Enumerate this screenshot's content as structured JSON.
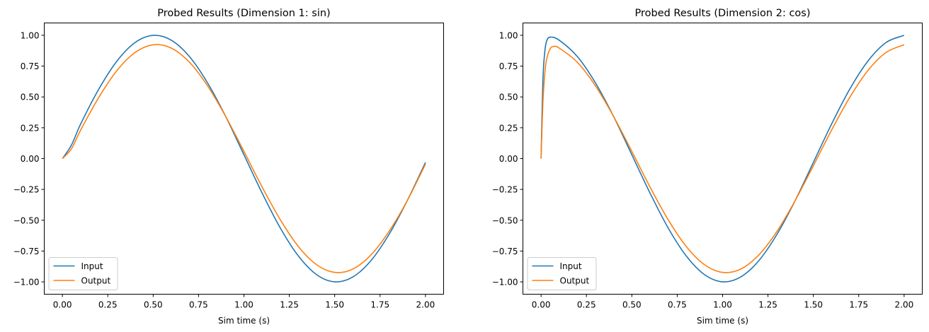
{
  "chart_data": [
    {
      "type": "line",
      "title": "Probed Results (Dimension 1: sin)",
      "xlabel": "Sim time (s)",
      "ylabel": "",
      "xlim": [
        -0.1,
        2.1
      ],
      "ylim": [
        -1.1,
        1.1
      ],
      "xticks": [
        "0.00",
        "0.25",
        "0.50",
        "0.75",
        "1.00",
        "1.25",
        "1.50",
        "1.75",
        "2.00"
      ],
      "yticks": [
        "−1.00",
        "−0.75",
        "−0.50",
        "−0.25",
        "0.00",
        "0.25",
        "0.50",
        "0.75",
        "1.00"
      ],
      "grid": false,
      "legend_position": "lower-left",
      "series": [
        {
          "name": "Input",
          "color": "#1f77b4",
          "x": [
            0,
            0.05,
            0.1,
            0.2,
            0.3,
            0.4,
            0.5,
            0.6,
            0.7,
            0.8,
            0.9,
            1.0,
            1.1,
            1.2,
            1.3,
            1.4,
            1.5,
            1.6,
            1.7,
            1.8,
            1.9,
            2.0
          ],
          "y": [
            0,
            0.11,
            0.279,
            0.562,
            0.79,
            0.941,
            0.9995,
            0.96,
            0.827,
            0.613,
            0.34,
            0.031,
            -0.279,
            -0.562,
            -0.79,
            -0.941,
            -0.9995,
            -0.96,
            -0.827,
            -0.613,
            -0.34,
            -0.031
          ]
        },
        {
          "name": "Output",
          "color": "#ff7f0e",
          "x": [
            0,
            0.05,
            0.1,
            0.2,
            0.3,
            0.4,
            0.5,
            0.6,
            0.7,
            0.8,
            0.9,
            1.0,
            1.1,
            1.2,
            1.3,
            1.4,
            1.5,
            1.6,
            1.7,
            1.8,
            1.9,
            2.0
          ],
          "y": [
            0,
            0.08,
            0.23,
            0.495,
            0.713,
            0.86,
            0.923,
            0.896,
            0.781,
            0.589,
            0.34,
            0.058,
            -0.23,
            -0.495,
            -0.713,
            -0.86,
            -0.923,
            -0.896,
            -0.781,
            -0.589,
            -0.34,
            -0.045
          ]
        }
      ]
    },
    {
      "type": "line",
      "title": "Probed Results (Dimension 2: cos)",
      "xlabel": "Sim time (s)",
      "ylabel": "",
      "xlim": [
        -0.1,
        2.1
      ],
      "ylim": [
        -1.1,
        1.1
      ],
      "xticks": [
        "0.00",
        "0.25",
        "0.50",
        "0.75",
        "1.00",
        "1.25",
        "1.50",
        "1.75",
        "2.00"
      ],
      "yticks": [
        "−1.00",
        "−0.75",
        "−0.50",
        "−0.25",
        "0.00",
        "0.25",
        "0.50",
        "0.75",
        "1.00"
      ],
      "grid": false,
      "legend_position": "lower-left",
      "series": [
        {
          "name": "Input",
          "color": "#1f77b4",
          "x": [
            0,
            0.01,
            0.02,
            0.03,
            0.05,
            0.1,
            0.2,
            0.3,
            0.4,
            0.5,
            0.6,
            0.7,
            0.8,
            0.9,
            1.0,
            1.1,
            1.2,
            1.3,
            1.4,
            1.5,
            1.6,
            1.7,
            1.8,
            1.9,
            2.0
          ],
          "y": [
            0,
            0.63,
            0.86,
            0.95,
            0.985,
            0.96,
            0.827,
            0.613,
            0.34,
            0.031,
            -0.279,
            -0.562,
            -0.79,
            -0.941,
            -0.9995,
            -0.96,
            -0.827,
            -0.613,
            -0.34,
            -0.031,
            0.279,
            0.562,
            0.79,
            0.941,
            0.9995
          ]
        },
        {
          "name": "Output",
          "color": "#ff7f0e",
          "x": [
            0,
            0.01,
            0.02,
            0.03,
            0.05,
            0.07,
            0.1,
            0.2,
            0.3,
            0.4,
            0.5,
            0.6,
            0.7,
            0.8,
            0.9,
            1.0,
            1.1,
            1.2,
            1.3,
            1.4,
            1.5,
            1.6,
            1.7,
            1.8,
            1.9,
            2.0
          ],
          "y": [
            0,
            0.45,
            0.68,
            0.8,
            0.89,
            0.91,
            0.896,
            0.781,
            0.589,
            0.34,
            0.058,
            -0.23,
            -0.495,
            -0.713,
            -0.86,
            -0.923,
            -0.896,
            -0.781,
            -0.589,
            -0.34,
            -0.058,
            0.23,
            0.495,
            0.713,
            0.86,
            0.923
          ]
        }
      ]
    }
  ]
}
